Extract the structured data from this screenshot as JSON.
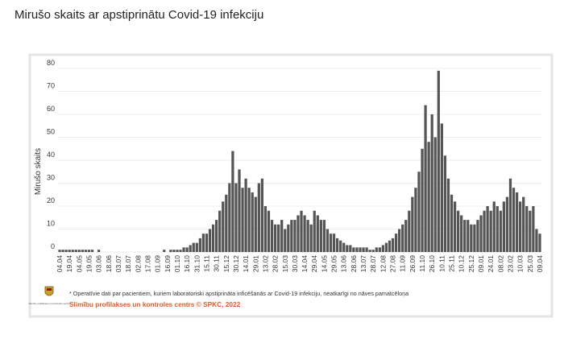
{
  "chart_data": {
    "type": "bar",
    "title": "Mirušo skaits ar apstiprinātu Covid-19 infekciju",
    "ylabel": "Mirušo skaits",
    "categories": [
      "04.04",
      null,
      null,
      "19.04",
      null,
      null,
      "04.05",
      null,
      null,
      "19.05",
      null,
      null,
      "03.06",
      null,
      null,
      "18.06",
      null,
      null,
      "03.07",
      null,
      null,
      "18.07",
      null,
      null,
      "02.08",
      null,
      null,
      "17.08",
      null,
      null,
      "01.09",
      null,
      null,
      "16.09",
      null,
      null,
      "01.10",
      null,
      null,
      "16.10",
      null,
      null,
      "31.10",
      null,
      null,
      "15.11",
      null,
      null,
      "30.11",
      null,
      null,
      "15.12",
      null,
      null,
      "30.12",
      null,
      null,
      "14.01",
      null,
      null,
      "29.01",
      null,
      null,
      "13.02",
      null,
      null,
      "28.02",
      null,
      null,
      "15.03",
      null,
      null,
      "30.03",
      null,
      null,
      "14.04",
      null,
      null,
      "29.04",
      null,
      null,
      "14.05",
      null,
      null,
      "29.05",
      null,
      null,
      "13.06",
      null,
      null,
      "28.06",
      null,
      null,
      "13.07",
      null,
      null,
      "28.07",
      null,
      null,
      "12.08",
      null,
      null,
      "27.08",
      null,
      null,
      "11.09",
      null,
      null,
      "26.09",
      null,
      null,
      "11.10",
      null,
      null,
      "26.10",
      null,
      null,
      "10.11",
      null,
      null,
      "25.11",
      null,
      null,
      "10.12",
      null,
      null,
      "25.12",
      null,
      null,
      "09.01",
      null,
      null,
      "24.01",
      null,
      null,
      "08.02",
      null,
      null,
      "23.02",
      null,
      null,
      "10.03",
      null,
      null,
      "25.03",
      null,
      null,
      "09.04"
    ],
    "values": [
      1,
      1,
      1,
      1,
      1,
      1,
      1,
      1,
      1,
      1,
      1,
      0,
      1,
      0,
      0,
      0,
      0,
      0,
      0,
      0,
      0,
      0,
      0,
      0,
      0,
      0,
      0,
      0,
      0,
      0,
      0,
      0,
      1,
      0,
      1,
      1,
      1,
      1,
      2,
      2,
      3,
      4,
      4,
      6,
      8,
      8,
      10,
      12,
      14,
      18,
      22,
      25,
      30,
      44,
      30,
      36,
      28,
      32,
      28,
      26,
      24,
      30,
      32,
      20,
      18,
      14,
      12,
      12,
      14,
      10,
      12,
      14,
      14,
      16,
      18,
      16,
      14,
      12,
      18,
      16,
      14,
      14,
      10,
      8,
      8,
      6,
      5,
      4,
      3,
      3,
      2,
      2,
      2,
      2,
      2,
      1,
      1,
      2,
      2,
      3,
      4,
      5,
      6,
      8,
      10,
      12,
      14,
      18,
      24,
      28,
      35,
      45,
      64,
      48,
      60,
      50,
      79,
      56,
      42,
      32,
      25,
      22,
      18,
      16,
      14,
      14,
      12,
      12,
      14,
      16,
      18,
      20,
      18,
      22,
      20,
      18,
      22,
      24,
      32,
      28,
      26,
      22,
      24,
      20,
      18,
      20,
      10,
      8
    ],
    "color": "#555555",
    "ylim": [
      0,
      80
    ],
    "yticks": [
      0,
      10,
      20,
      30,
      40,
      50,
      60,
      70,
      80
    ],
    "grid": true,
    "footnote": "* Operatīvie dati par pacientiem, kuriem laboratoriski apstiprināta inficēšanās ar Covid-19 infekciju, neatkarīgi no nāves pamatcēloņa",
    "source": "Slimību profilakses un kontroles centrs © SPKC, 2022",
    "logo_text": "Slimību profilakses un kontroles centrs"
  }
}
